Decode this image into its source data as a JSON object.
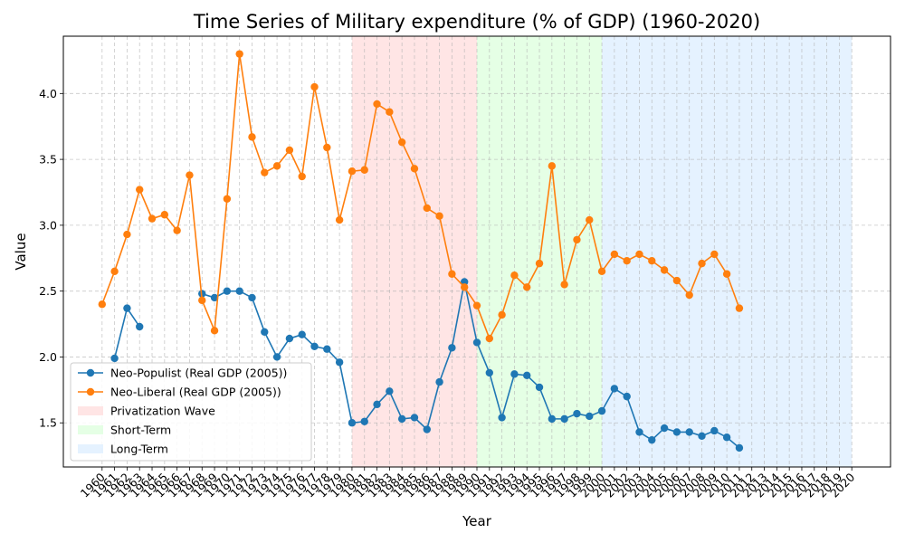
{
  "chart_data": {
    "type": "line",
    "title": "Time Series of Military expenditure (% of GDP) (1960-2020)",
    "xlabel": "Year",
    "ylabel": "Value",
    "xlim": [
      1956.9,
      2023.1
    ],
    "ylim": [
      1.165,
      4.435
    ],
    "x_ticks": [
      1960,
      1961,
      1962,
      1963,
      1964,
      1965,
      1966,
      1967,
      1968,
      1969,
      1970,
      1971,
      1972,
      1973,
      1974,
      1975,
      1976,
      1977,
      1978,
      1979,
      1980,
      1981,
      1982,
      1983,
      1984,
      1985,
      1986,
      1987,
      1988,
      1989,
      1990,
      1991,
      1992,
      1993,
      1994,
      1995,
      1996,
      1997,
      1998,
      1999,
      2000,
      2001,
      2002,
      2003,
      2004,
      2005,
      2006,
      2007,
      2008,
      2009,
      2010,
      2011,
      2012,
      2013,
      2014,
      2015,
      2016,
      2017,
      2018,
      2019,
      2020
    ],
    "y_ticks": [
      1.5,
      2.0,
      2.5,
      3.0,
      3.5,
      4.0
    ],
    "y_tick_labels": [
      "1.5",
      "2.0",
      "2.5",
      "3.0",
      "3.5",
      "4.0"
    ],
    "grid": true,
    "legend_position": "lower-left",
    "series": [
      {
        "name": "Neo-Populist (Real GDP (2005))",
        "color": "#1f77b4",
        "x": [
          1961,
          1962,
          1963,
          1968,
          1969,
          1970,
          1971,
          1972,
          1973,
          1974,
          1975,
          1976,
          1977,
          1978,
          1979,
          1980,
          1981,
          1982,
          1983,
          1984,
          1985,
          1986,
          1987,
          1988,
          1989,
          1990,
          1991,
          1992,
          1993,
          1994,
          1995,
          1996,
          1997,
          1998,
          1999,
          2000,
          2001,
          2002,
          2003,
          2004,
          2005,
          2006,
          2007,
          2008,
          2009,
          2010,
          2011
        ],
        "values": [
          1.99,
          2.37,
          2.23,
          2.48,
          2.45,
          2.5,
          2.5,
          2.45,
          2.19,
          2.0,
          2.14,
          2.17,
          2.08,
          2.06,
          1.96,
          1.5,
          1.51,
          1.64,
          1.74,
          1.53,
          1.54,
          1.45,
          1.81,
          2.07,
          2.57,
          2.11,
          1.88,
          1.54,
          1.87,
          1.86,
          1.77,
          1.53,
          1.53,
          1.57,
          1.55,
          1.59,
          1.76,
          1.7,
          1.43,
          1.37,
          1.46,
          1.43,
          1.43,
          1.4,
          1.44,
          1.39,
          1.31
        ]
      },
      {
        "name": "Neo-Liberal (Real GDP (2005))",
        "color": "#ff7f0e",
        "x": [
          1960,
          1961,
          1962,
          1963,
          1964,
          1965,
          1966,
          1967,
          1968,
          1969,
          1970,
          1971,
          1972,
          1973,
          1974,
          1975,
          1976,
          1977,
          1978,
          1979,
          1980,
          1981,
          1982,
          1983,
          1984,
          1985,
          1986,
          1987,
          1988,
          1989,
          1990,
          1991,
          1992,
          1993,
          1994,
          1995,
          1996,
          1997,
          1998,
          1999,
          2000,
          2001,
          2002,
          2003,
          2004,
          2005,
          2006,
          2007,
          2008,
          2009,
          2010,
          2011
        ],
        "values": [
          2.4,
          2.65,
          2.93,
          3.27,
          3.05,
          3.08,
          2.96,
          3.38,
          2.43,
          2.2,
          3.2,
          4.3,
          3.67,
          3.4,
          3.45,
          3.57,
          3.37,
          4.05,
          3.59,
          3.04,
          3.41,
          3.42,
          3.92,
          3.86,
          3.63,
          3.43,
          3.13,
          3.07,
          2.63,
          2.53,
          2.39,
          2.14,
          2.32,
          2.62,
          2.53,
          2.71,
          3.45,
          2.55,
          2.89,
          3.04,
          2.65,
          2.78,
          2.73,
          2.78,
          2.73,
          2.66,
          2.58,
          2.47,
          2.71,
          2.78,
          2.63,
          2.37
        ]
      }
    ],
    "spans": [
      {
        "name": "Privatization Wave",
        "start": 1980,
        "end": 1990,
        "color": "#ffcccc",
        "opacity": 0.5
      },
      {
        "name": "Short-Term",
        "start": 1990,
        "end": 2000,
        "color": "#ccffcc",
        "opacity": 0.5
      },
      {
        "name": "Long-Term",
        "start": 2000,
        "end": 2020,
        "color": "#cce5ff",
        "opacity": 0.5
      }
    ]
  }
}
